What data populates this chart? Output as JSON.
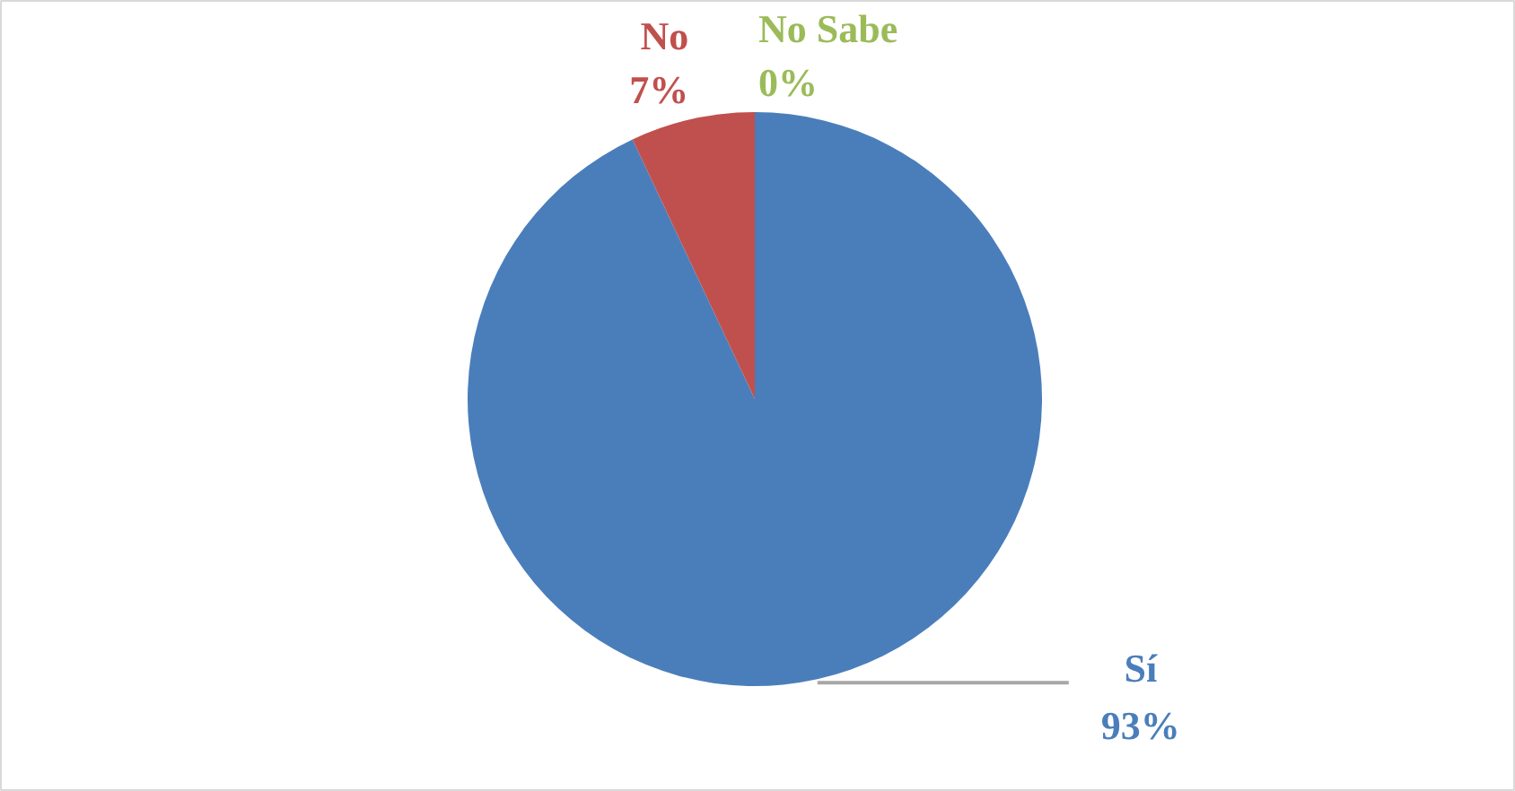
{
  "chart_data": {
    "type": "pie",
    "categories": [
      "Sí",
      "No",
      "No Sabe"
    ],
    "values": [
      93,
      7,
      0
    ],
    "value_labels": [
      "93%",
      "7%",
      "0%"
    ],
    "colors": [
      "#4a7ebb",
      "#c0504d",
      "#9bbb59"
    ]
  }
}
